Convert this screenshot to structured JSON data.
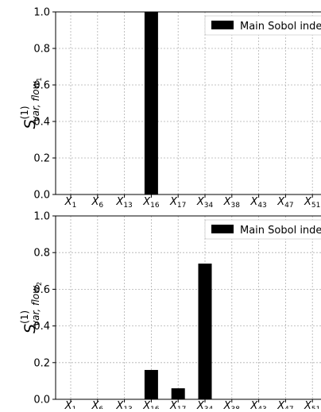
{
  "chart_data": [
    {
      "type": "bar",
      "categories": [
        "X_1",
        "X_6",
        "X_13",
        "X_16",
        "X_17",
        "X_34",
        "X_38",
        "X_43",
        "X_47",
        "X_51"
      ],
      "tick_labels": [
        {
          "base": "X",
          "sub": "1"
        },
        {
          "base": "X",
          "sub": "6"
        },
        {
          "base": "X",
          "sub": "13"
        },
        {
          "base": "X",
          "sub": "16"
        },
        {
          "base": "X",
          "sub": "17"
        },
        {
          "base": "X",
          "sub": "34"
        },
        {
          "base": "X",
          "sub": "38"
        },
        {
          "base": "X",
          "sub": "43"
        },
        {
          "base": "X",
          "sub": "47"
        },
        {
          "base": "X",
          "sub": "51"
        }
      ],
      "series": [
        {
          "name": "Main Sobol index",
          "values": [
            0,
            0,
            0,
            1.0,
            0,
            0,
            0,
            0,
            0,
            0
          ],
          "color": "#000000"
        }
      ],
      "ylabel": {
        "main": "S",
        "sup": "(1)",
        "sub": "var, flow",
        "subsub": "1"
      },
      "ylim": [
        0,
        1.0
      ],
      "yticks": [
        "0.0",
        "0.2",
        "0.4",
        "0.6",
        "0.8",
        "1.0"
      ],
      "grid": true,
      "legend": {
        "placement": "top-right",
        "label": "Main Sobol index"
      }
    },
    {
      "type": "bar",
      "categories": [
        "X_1",
        "X_6",
        "X_13",
        "X_16",
        "X_17",
        "X_34",
        "X_38",
        "X_43",
        "X_47",
        "X_51"
      ],
      "tick_labels": [
        {
          "base": "X",
          "sub": "1"
        },
        {
          "base": "X",
          "sub": "6"
        },
        {
          "base": "X",
          "sub": "13"
        },
        {
          "base": "X",
          "sub": "16"
        },
        {
          "base": "X",
          "sub": "17"
        },
        {
          "base": "X",
          "sub": "34"
        },
        {
          "base": "X",
          "sub": "38"
        },
        {
          "base": "X",
          "sub": "43"
        },
        {
          "base": "X",
          "sub": "47"
        },
        {
          "base": "X",
          "sub": "51"
        }
      ],
      "series": [
        {
          "name": "Main Sobol index",
          "values": [
            0,
            0,
            0,
            0.16,
            0.06,
            0.74,
            0,
            0,
            0,
            0
          ],
          "color": "#000000"
        }
      ],
      "ylabel": {
        "main": "S",
        "sup": "(1)",
        "sub": "var, flow",
        "subsub": "2"
      },
      "ylim": [
        0,
        1.0
      ],
      "yticks": [
        "0.0",
        "0.2",
        "0.4",
        "0.6",
        "0.8",
        "1.0"
      ],
      "grid": true,
      "legend": {
        "placement": "top-right",
        "label": "Main Sobol index"
      }
    }
  ]
}
